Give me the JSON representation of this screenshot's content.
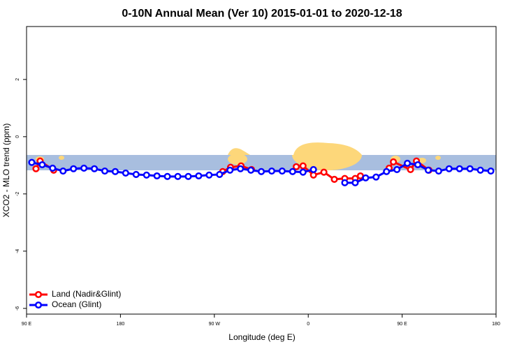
{
  "chart_data": {
    "type": "line",
    "title": "0-10N Annual Mean (Ver 10)   2015-01-01 to 2020-12-18",
    "x_label": "Longitude (deg E)",
    "y_label": "XCO2 - MLO trend (ppm)",
    "xlim": [
      90,
      540
    ],
    "ylim": [
      -6.2,
      3.85
    ],
    "xticks": [
      {
        "value": 90,
        "label": "90 E"
      },
      {
        "value": 180,
        "label": "180"
      },
      {
        "value": 270,
        "label": "90 W"
      },
      {
        "value": 360,
        "label": "0"
      },
      {
        "value": 450,
        "label": "90 E"
      },
      {
        "value": 540,
        "label": "180"
      }
    ],
    "yticks": [
      -6,
      -4,
      -2,
      0,
      2
    ],
    "legend": "bottom-left",
    "series": [
      {
        "name": "Land (Nadir&Glint)",
        "color": "#ff0000",
        "x": [
          99,
          103,
          116,
          200,
          278,
          285.5,
          295.6,
          305.6,
          325,
          348.5,
          355,
          365,
          375,
          385,
          395,
          405,
          410,
          425,
          437.5,
          441.6,
          458,
          463.7,
          475.7
        ],
        "values": [
          -1.12,
          -0.85,
          -1.17,
          null,
          -1.22,
          -1.07,
          -1.02,
          -1.15,
          null,
          -1.05,
          -1.02,
          -1.34,
          -1.24,
          -1.49,
          -1.46,
          -1.46,
          -1.37,
          null,
          -1.1,
          -0.88,
          -1.15,
          -0.85,
          -1.17
        ]
      },
      {
        "name": "Ocean (Glint)",
        "color": "#0000ff",
        "x": [
          95,
          105,
          115,
          125,
          135,
          145,
          155,
          165,
          175,
          185,
          195,
          205,
          215,
          225,
          235,
          245,
          255,
          265,
          275,
          285,
          295,
          305,
          315,
          325,
          335,
          345,
          355,
          365,
          375,
          385,
          395,
          405,
          415,
          425,
          435,
          445,
          455,
          465,
          475,
          485,
          495,
          505,
          515,
          525,
          535
        ],
        "values": [
          -0.9,
          -0.98,
          -1.1,
          -1.2,
          -1.12,
          -1.1,
          -1.12,
          -1.2,
          -1.22,
          -1.27,
          -1.32,
          -1.34,
          -1.37,
          -1.39,
          -1.39,
          -1.39,
          -1.37,
          -1.34,
          -1.32,
          -1.17,
          -1.12,
          -1.17,
          -1.22,
          -1.2,
          -1.2,
          -1.22,
          -1.24,
          -1.15,
          null,
          null,
          -1.61,
          -1.61,
          -1.44,
          -1.41,
          -1.22,
          -1.15,
          -0.93,
          -0.98,
          -1.17,
          -1.2,
          -1.12,
          -1.12,
          -1.12,
          -1.17,
          -1.2
        ]
      }
    ]
  }
}
